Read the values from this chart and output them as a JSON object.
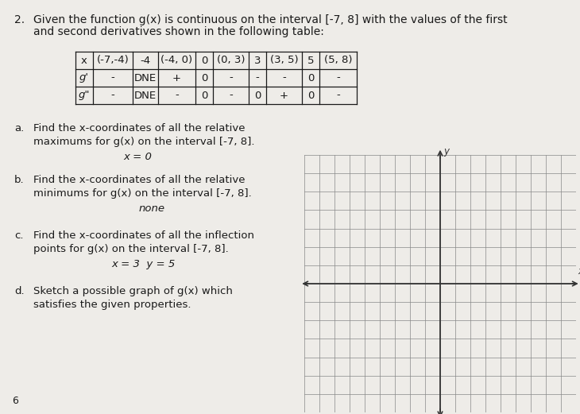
{
  "problem_number": "2.",
  "problem_text_line1": "Given the function g(x) is continuous on the interval [-7, 8] with the values of the first",
  "problem_text_line2": "and second derivatives shown in the following table:",
  "table_headers": [
    "x",
    "(-7,-4)",
    "-4",
    "(-4, 0)",
    "0",
    "(0, 3)",
    "3",
    "(3, 5)",
    "5",
    "(5, 8)"
  ],
  "gprime_row": [
    "g'",
    "-",
    "DNE",
    "+",
    "0",
    "-",
    "-",
    "-",
    "0",
    "-"
  ],
  "gdprime_row": [
    "g\"",
    "-",
    "DNE",
    "-",
    "0",
    "-",
    "0",
    "+",
    "0",
    "-"
  ],
  "part_a_line1": "Find the x-coordinates of all the relative",
  "part_a_line2": "maximums for g(x) on the interval [-7, 8].",
  "part_a_answer": "x = 0",
  "part_b_line1": "Find the x-coordinates of all the relative",
  "part_b_line2": "minimums for g(x) on the interval [-7, 8].",
  "part_b_answer": "none",
  "part_c_line1": "Find the x-coordinates of all the inflection",
  "part_c_line2": "points for g(x) on the interval [-7, 8].",
  "part_c_answer": "x = 3  y = 5",
  "part_d_line1": "Sketch a possible graph of g(x) which",
  "part_d_line2": "satisfies the given properties.",
  "footer_text": "6",
  "bg_color": "#eeece8",
  "text_color": "#1a1a1a",
  "grid_color": "#888888",
  "axis_color": "#333333"
}
